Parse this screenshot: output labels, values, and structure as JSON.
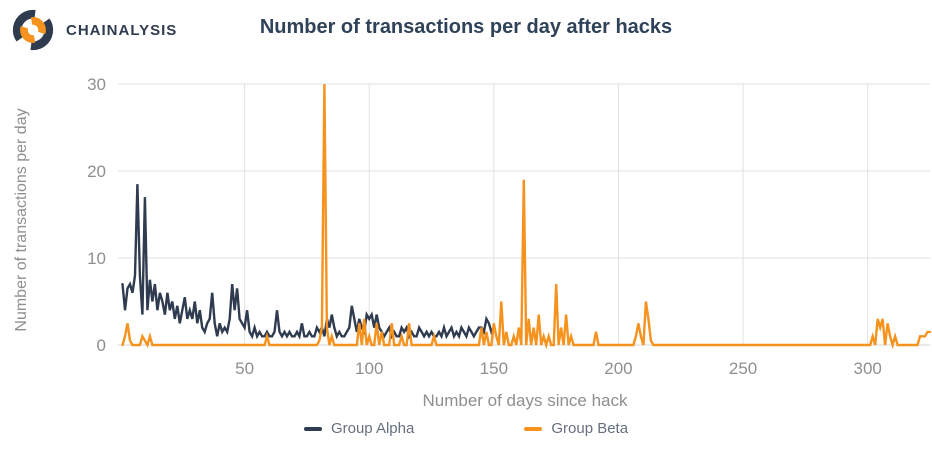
{
  "header": {
    "brand": "CHAINALYSIS",
    "title": "Number of transactions per day after hacks"
  },
  "colors": {
    "navy": "#2f3b4f",
    "orange": "#f6921e",
    "grid": "#e2e2e2",
    "baseline": "#d6d6d6",
    "axis_text": "#8f8f8f",
    "legend_text": "#667080",
    "title_text": "#2f4258"
  },
  "legend": {
    "items": [
      {
        "label": "Group Alpha"
      },
      {
        "label": "Group Beta"
      }
    ]
  },
  "chart_data": {
    "type": "line",
    "title": "Number of transactions per day after hacks",
    "xlabel": "Number of days since hack",
    "ylabel": "Number of transactions per day",
    "xlim": [
      0,
      325
    ],
    "ylim": [
      0,
      30
    ],
    "x_ticks": [
      50,
      100,
      150,
      200,
      250,
      300
    ],
    "y_ticks": [
      0,
      10,
      20,
      30
    ],
    "grid": true,
    "legend_position": "bottom",
    "series": [
      {
        "name": "Group Alpha",
        "color": "#2f3b4f",
        "x_start": 1,
        "values": [
          7,
          4,
          6.5,
          7,
          6,
          8,
          18.5,
          8,
          3.5,
          17,
          4,
          7.5,
          5,
          7,
          4,
          6,
          5,
          3.5,
          6,
          4,
          5,
          3,
          4.5,
          2.5,
          4,
          5.5,
          3,
          4,
          3,
          5,
          2.5,
          4,
          2,
          1.5,
          2.5,
          3,
          6,
          2.5,
          1,
          2.5,
          1.5,
          2,
          1.5,
          3,
          7,
          4,
          6.5,
          3,
          2.5,
          2,
          4,
          1.5,
          1,
          2,
          1,
          1.5,
          1,
          1,
          1.5,
          1,
          1,
          1.5,
          4,
          1.5,
          1,
          1.5,
          1,
          1.5,
          1,
          1,
          1.5,
          1,
          2.5,
          1,
          1,
          1.5,
          1,
          1,
          2,
          1.5,
          2,
          1,
          3,
          2,
          3.5,
          2,
          1,
          1.5,
          1,
          1,
          1.5,
          2,
          4.5,
          3,
          1.5,
          3,
          2,
          1.5,
          3.5,
          3,
          3.5,
          2,
          3.5,
          2,
          1.5,
          1,
          1.5,
          2,
          1,
          1.5,
          1,
          1,
          2,
          1.5,
          2,
          1,
          1.5,
          1,
          1,
          2,
          1.5,
          1,
          1.5,
          1,
          1.5,
          1,
          1,
          1.5,
          1,
          2,
          1,
          1.5,
          2,
          1,
          1.5,
          1,
          2,
          1.5,
          1,
          2,
          1.5,
          1,
          1.5,
          2,
          2,
          1.5,
          3,
          2.5,
          1.5,
          2
        ]
      },
      {
        "name": "Group Beta",
        "color": "#f6921e",
        "x_start": 1,
        "values": [
          0,
          1,
          2.5,
          0.5,
          0,
          0,
          0,
          0,
          1,
          0.5,
          0,
          1,
          0,
          0,
          0,
          0,
          0,
          0,
          0,
          0,
          0,
          0,
          0,
          0,
          0,
          0,
          0,
          0,
          0,
          0,
          0,
          0,
          0,
          0,
          0,
          0,
          0,
          0,
          0,
          0,
          0,
          0,
          0,
          0,
          0,
          0,
          0,
          0,
          0,
          0,
          0,
          0,
          0,
          0,
          0,
          0,
          0,
          0,
          1,
          0,
          0,
          0,
          0,
          0,
          0,
          0,
          0,
          0,
          0,
          0,
          0,
          0,
          0,
          0,
          0,
          0,
          0,
          0,
          0,
          0.5,
          2,
          30,
          2,
          0,
          1,
          0,
          0,
          0,
          0,
          0,
          0,
          0,
          0,
          0,
          0,
          2.5,
          0,
          3,
          0,
          1,
          0,
          0,
          2.5,
          0,
          1.5,
          0,
          0,
          0,
          2.5,
          0,
          0,
          0,
          1,
          0,
          0,
          2.5,
          0,
          0,
          0,
          0,
          0,
          0,
          0,
          0,
          0,
          1,
          0,
          0,
          0,
          0,
          0,
          0,
          0,
          0,
          0,
          0,
          0,
          0,
          0,
          0,
          0,
          0,
          0,
          0,
          2,
          0,
          1.5,
          0,
          0,
          2.5,
          1,
          0,
          5,
          0,
          1.5,
          0,
          0,
          1,
          0,
          2,
          0,
          19,
          0,
          3,
          0,
          2,
          0,
          3.5,
          0,
          1,
          0,
          1,
          0,
          0,
          7,
          0,
          2,
          0,
          3.5,
          0,
          1,
          0,
          0,
          0,
          0,
          0,
          0,
          0,
          0,
          0,
          1.5,
          0,
          0,
          0,
          0,
          0,
          0,
          0,
          0,
          0,
          0,
          0,
          0,
          0,
          0,
          0,
          1,
          2.5,
          1,
          0,
          5,
          3,
          0.5,
          0,
          0,
          0,
          0,
          0,
          0,
          0,
          0,
          0,
          0,
          0,
          0,
          0,
          0,
          0,
          0,
          0,
          0,
          0,
          0,
          0,
          0,
          0,
          0,
          0,
          0,
          0,
          0,
          0,
          0,
          0,
          0,
          0,
          0,
          0,
          0,
          0,
          0,
          0,
          0,
          0,
          0,
          0,
          0,
          0,
          0,
          0,
          0,
          0,
          0,
          0,
          0,
          0,
          0,
          0,
          0,
          0,
          0,
          0,
          0,
          0,
          0,
          0,
          0,
          0,
          0,
          0,
          0,
          0,
          0,
          0,
          0,
          0,
          0,
          0,
          0,
          0,
          0,
          0,
          0,
          0,
          0,
          0,
          0,
          0,
          0,
          0,
          0,
          1,
          0,
          3,
          2,
          3,
          0,
          2.5,
          1,
          0,
          1,
          0,
          0,
          0,
          0,
          0,
          0,
          0,
          0,
          0,
          1,
          1,
          1,
          1.5,
          1.5
        ]
      }
    ]
  }
}
